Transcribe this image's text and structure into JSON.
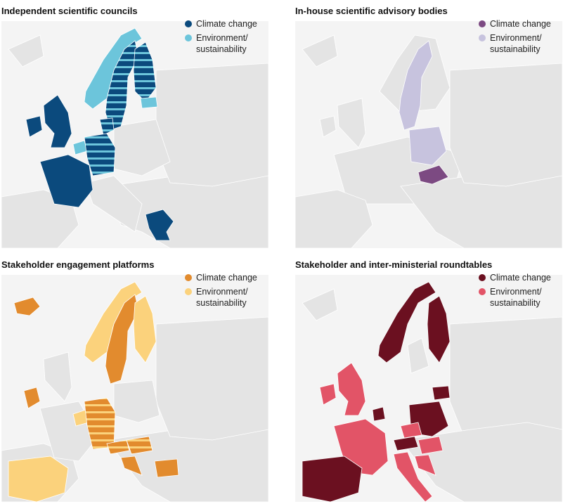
{
  "colors": {
    "land": "#e4e4e4",
    "sea": "#f4f4f4",
    "border": "#ffffff"
  },
  "panels": [
    {
      "title": "Independent scientific councils",
      "legend": [
        {
          "label": "Climate change",
          "color": "#0b4a7d"
        },
        {
          "label": "Environment/\nsustainability",
          "color": "#6cc5db"
        }
      ]
    },
    {
      "title": "In-house scientific advisory bodies",
      "legend": [
        {
          "label": "Climate change",
          "color": "#7c4a82"
        },
        {
          "label": "Environment/\nsustainability",
          "color": "#c7c3de"
        }
      ]
    },
    {
      "title": "Stakeholder engagement platforms",
      "legend": [
        {
          "label": "Climate change",
          "color": "#e28b2e"
        },
        {
          "label": "Environment/\nsustainability",
          "color": "#fbd27c"
        }
      ]
    },
    {
      "title": "Stakeholder and inter-ministerial roundtables",
      "legend": [
        {
          "label": "Climate change",
          "color": "#6b1020"
        },
        {
          "label": "Environment/\nsustainability",
          "color": "#e25467"
        }
      ]
    }
  ]
}
